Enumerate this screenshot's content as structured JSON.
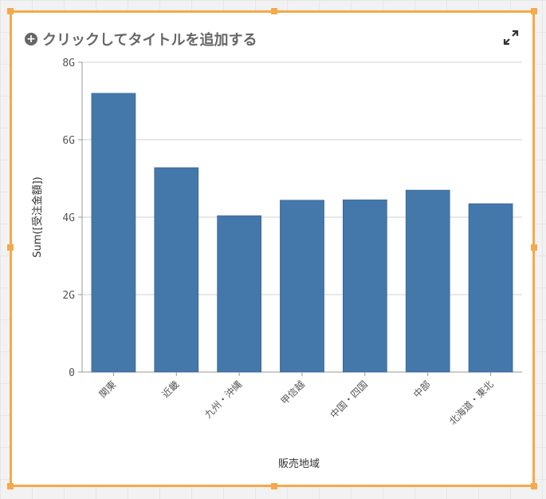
{
  "header": {
    "title": "クリックしてタイトルを追加する"
  },
  "chart_data": {
    "type": "bar",
    "title": "クリックしてタイトルを追加する",
    "xlabel": "販売地域",
    "ylabel": "Sum([受注金額])",
    "categories": [
      "関東",
      "近畿",
      "九州・沖縄",
      "甲信越",
      "中国・四国",
      "中部",
      "北海道・東北"
    ],
    "values": [
      7.2,
      5.28,
      4.04,
      4.44,
      4.45,
      4.7,
      4.35
    ],
    "value_unit": "G",
    "ylim": [
      0,
      8
    ],
    "yticks": [
      "0",
      "2G",
      "4G",
      "6G",
      "8G"
    ],
    "grid": true,
    "bar_color": "#4477aa",
    "series": [
      {
        "name": "Sum([受注金額])",
        "values": [
          7.2,
          5.28,
          4.04,
          4.44,
          4.45,
          4.7,
          4.35
        ]
      }
    ]
  }
}
